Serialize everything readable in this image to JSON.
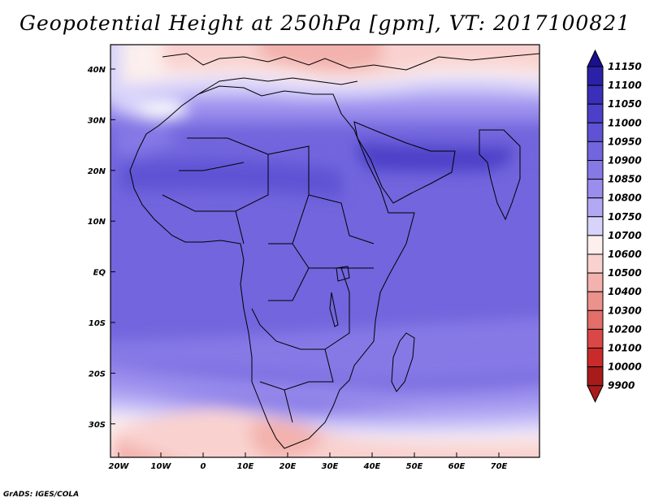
{
  "title": "Geopotential Height at 250hPa [gpm], VT: 2017100821",
  "credit": "GrADS: IGES/COLA",
  "map": {
    "projection": "lat-lon",
    "region": "Africa",
    "lon_range": [
      -22,
      80
    ],
    "lat_range": [
      -37,
      45
    ],
    "lat_ticks": [
      "40N",
      "30N",
      "20N",
      "10N",
      "EQ",
      "10S",
      "20S",
      "30S"
    ],
    "lon_ticks": [
      "20W",
      "10W",
      "0",
      "10E",
      "20E",
      "30E",
      "40E",
      "50E",
      "60E",
      "70E"
    ],
    "field": "geopotential height",
    "level": "250hPa",
    "units": "gpm",
    "valid_time": "2017100821"
  },
  "colorbar": {
    "levels": [
      "11150",
      "11100",
      "11050",
      "11000",
      "10950",
      "10900",
      "10850",
      "10800",
      "10750",
      "10700",
      "10600",
      "10500",
      "10400",
      "10300",
      "10200",
      "10100",
      "10000",
      "9900"
    ],
    "colors": [
      "#1a0f8c",
      "#2b20a8",
      "#3a2fb8",
      "#4d40c8",
      "#5f52d4",
      "#7265dd",
      "#8679e6",
      "#9a8ded",
      "#b3a8f3",
      "#d8d3fa",
      "#fcefed",
      "#f9d2cf",
      "#f3b2ad",
      "#ec928c",
      "#e26d69",
      "#d94846",
      "#c92b2b",
      "#a81b1b"
    ]
  }
}
